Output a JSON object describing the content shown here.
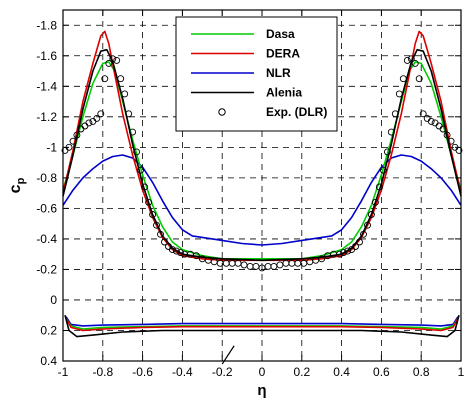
{
  "chart_data": {
    "type": "line",
    "title": "",
    "xlabel": "η",
    "ylabel": "c",
    "ylabel_sub": "p",
    "xlim": [
      -1,
      1
    ],
    "ylim": [
      0.4,
      -1.9
    ],
    "y_axis_inverted": true,
    "grid": true,
    "grid_style": "dashed",
    "legend_position": "top-center",
    "x_ticks": [
      "-1",
      "-0.8",
      "-0.6",
      "-0.4",
      "-0.2",
      "0",
      "0.2",
      "0.4",
      "0.6",
      "0.8",
      "1"
    ],
    "y_ticks": [
      "-1.8",
      "-1.6",
      "-1.4",
      "-1.2",
      "-1",
      "-0.8",
      "-0.6",
      "-0.4",
      "-0.2",
      "0",
      "0.2",
      "0.4"
    ],
    "series": [
      {
        "name": "Dasa",
        "color": "#00cc00",
        "upper": [
          [
            -1,
            -0.72
          ],
          [
            -0.95,
            -0.95
          ],
          [
            -0.9,
            -1.2
          ],
          [
            -0.85,
            -1.42
          ],
          [
            -0.8,
            -1.55
          ],
          [
            -0.77,
            -1.56
          ],
          [
            -0.74,
            -1.5
          ],
          [
            -0.7,
            -1.3
          ],
          [
            -0.65,
            -1.05
          ],
          [
            -0.6,
            -0.82
          ],
          [
            -0.55,
            -0.62
          ],
          [
            -0.5,
            -0.48
          ],
          [
            -0.45,
            -0.38
          ],
          [
            -0.4,
            -0.33
          ],
          [
            -0.3,
            -0.29
          ],
          [
            -0.2,
            -0.27
          ],
          [
            -0.1,
            -0.27
          ],
          [
            0,
            -0.27
          ],
          [
            0.1,
            -0.27
          ],
          [
            0.2,
            -0.27
          ],
          [
            0.3,
            -0.29
          ],
          [
            0.4,
            -0.33
          ],
          [
            0.45,
            -0.38
          ],
          [
            0.5,
            -0.48
          ],
          [
            0.55,
            -0.62
          ],
          [
            0.6,
            -0.82
          ],
          [
            0.65,
            -1.05
          ],
          [
            0.7,
            -1.3
          ],
          [
            0.74,
            -1.5
          ],
          [
            0.77,
            -1.56
          ],
          [
            0.8,
            -1.55
          ],
          [
            0.85,
            -1.42
          ],
          [
            0.9,
            -1.2
          ],
          [
            0.95,
            -0.95
          ],
          [
            1,
            -0.72
          ]
        ],
        "lower": [
          [
            -0.985,
            0.12
          ],
          [
            -0.96,
            0.17
          ],
          [
            -0.9,
            0.19
          ],
          [
            -0.8,
            0.18
          ],
          [
            -0.6,
            0.175
          ],
          [
            -0.4,
            0.17
          ],
          [
            -0.2,
            0.17
          ],
          [
            0,
            0.17
          ],
          [
            0.2,
            0.17
          ],
          [
            0.4,
            0.17
          ],
          [
            0.6,
            0.175
          ],
          [
            0.8,
            0.18
          ],
          [
            0.9,
            0.19
          ],
          [
            0.96,
            0.17
          ],
          [
            0.985,
            0.12
          ]
        ]
      },
      {
        "name": "DERA",
        "color": "#dd0000",
        "upper": [
          [
            -1,
            -0.7
          ],
          [
            -0.95,
            -0.98
          ],
          [
            -0.9,
            -1.3
          ],
          [
            -0.85,
            -1.55
          ],
          [
            -0.81,
            -1.73
          ],
          [
            -0.79,
            -1.76
          ],
          [
            -0.77,
            -1.68
          ],
          [
            -0.74,
            -1.48
          ],
          [
            -0.7,
            -1.22
          ],
          [
            -0.65,
            -0.95
          ],
          [
            -0.6,
            -0.72
          ],
          [
            -0.55,
            -0.54
          ],
          [
            -0.5,
            -0.41
          ],
          [
            -0.45,
            -0.33
          ],
          [
            -0.4,
            -0.29
          ],
          [
            -0.3,
            -0.27
          ],
          [
            -0.2,
            -0.26
          ],
          [
            0,
            -0.26
          ],
          [
            0.2,
            -0.26
          ],
          [
            0.3,
            -0.27
          ],
          [
            0.4,
            -0.29
          ],
          [
            0.45,
            -0.33
          ],
          [
            0.5,
            -0.41
          ],
          [
            0.55,
            -0.54
          ],
          [
            0.6,
            -0.72
          ],
          [
            0.65,
            -0.95
          ],
          [
            0.7,
            -1.22
          ],
          [
            0.74,
            -1.48
          ],
          [
            0.77,
            -1.68
          ],
          [
            0.79,
            -1.76
          ],
          [
            0.81,
            -1.73
          ],
          [
            0.85,
            -1.55
          ],
          [
            0.9,
            -1.3
          ],
          [
            0.95,
            -0.98
          ],
          [
            1,
            -0.7
          ]
        ],
        "lower": [
          [
            -0.985,
            0.12
          ],
          [
            -0.96,
            0.18
          ],
          [
            -0.9,
            0.2
          ],
          [
            -0.8,
            0.19
          ],
          [
            -0.6,
            0.18
          ],
          [
            -0.4,
            0.175
          ],
          [
            -0.2,
            0.175
          ],
          [
            0,
            0.175
          ],
          [
            0.2,
            0.175
          ],
          [
            0.4,
            0.175
          ],
          [
            0.6,
            0.18
          ],
          [
            0.8,
            0.19
          ],
          [
            0.9,
            0.2
          ],
          [
            0.96,
            0.18
          ],
          [
            0.985,
            0.12
          ]
        ]
      },
      {
        "name": "NLR",
        "color": "#0000cc",
        "upper": [
          [
            -1,
            -0.62
          ],
          [
            -0.95,
            -0.72
          ],
          [
            -0.9,
            -0.8
          ],
          [
            -0.85,
            -0.86
          ],
          [
            -0.8,
            -0.91
          ],
          [
            -0.75,
            -0.94
          ],
          [
            -0.7,
            -0.95
          ],
          [
            -0.65,
            -0.93
          ],
          [
            -0.6,
            -0.87
          ],
          [
            -0.55,
            -0.77
          ],
          [
            -0.5,
            -0.65
          ],
          [
            -0.45,
            -0.54
          ],
          [
            -0.4,
            -0.46
          ],
          [
            -0.35,
            -0.42
          ],
          [
            -0.3,
            -0.41
          ],
          [
            -0.2,
            -0.39
          ],
          [
            -0.1,
            -0.37
          ],
          [
            0,
            -0.36
          ],
          [
            0.1,
            -0.37
          ],
          [
            0.2,
            -0.39
          ],
          [
            0.3,
            -0.41
          ],
          [
            0.35,
            -0.42
          ],
          [
            0.4,
            -0.46
          ],
          [
            0.45,
            -0.54
          ],
          [
            0.5,
            -0.65
          ],
          [
            0.55,
            -0.77
          ],
          [
            0.6,
            -0.87
          ],
          [
            0.65,
            -0.93
          ],
          [
            0.7,
            -0.95
          ],
          [
            0.75,
            -0.94
          ],
          [
            0.8,
            -0.91
          ],
          [
            0.85,
            -0.86
          ],
          [
            0.9,
            -0.8
          ],
          [
            0.95,
            -0.72
          ],
          [
            1,
            -0.62
          ]
        ],
        "lower": [
          [
            -0.985,
            0.11
          ],
          [
            -0.96,
            0.16
          ],
          [
            -0.9,
            0.17
          ],
          [
            -0.8,
            0.165
          ],
          [
            -0.6,
            0.16
          ],
          [
            -0.4,
            0.155
          ],
          [
            -0.2,
            0.155
          ],
          [
            0,
            0.155
          ],
          [
            0.2,
            0.155
          ],
          [
            0.4,
            0.155
          ],
          [
            0.6,
            0.16
          ],
          [
            0.8,
            0.165
          ],
          [
            0.9,
            0.17
          ],
          [
            0.96,
            0.16
          ],
          [
            0.985,
            0.11
          ]
        ]
      },
      {
        "name": "Alenia",
        "color": "#000000",
        "upper": [
          [
            -1,
            -0.68
          ],
          [
            -0.95,
            -0.95
          ],
          [
            -0.9,
            -1.25
          ],
          [
            -0.85,
            -1.5
          ],
          [
            -0.81,
            -1.63
          ],
          [
            -0.78,
            -1.64
          ],
          [
            -0.75,
            -1.56
          ],
          [
            -0.7,
            -1.32
          ],
          [
            -0.65,
            -1.02
          ],
          [
            -0.6,
            -0.76
          ],
          [
            -0.55,
            -0.56
          ],
          [
            -0.5,
            -0.42
          ],
          [
            -0.45,
            -0.34
          ],
          [
            -0.4,
            -0.3
          ],
          [
            -0.3,
            -0.28
          ],
          [
            -0.2,
            -0.27
          ],
          [
            0,
            -0.26
          ],
          [
            0.2,
            -0.27
          ],
          [
            0.3,
            -0.28
          ],
          [
            0.4,
            -0.3
          ],
          [
            0.45,
            -0.34
          ],
          [
            0.5,
            -0.42
          ],
          [
            0.55,
            -0.56
          ],
          [
            0.6,
            -0.76
          ],
          [
            0.65,
            -1.02
          ],
          [
            0.7,
            -1.32
          ],
          [
            0.75,
            -1.56
          ],
          [
            0.78,
            -1.64
          ],
          [
            0.81,
            -1.63
          ],
          [
            0.85,
            -1.5
          ],
          [
            0.9,
            -1.25
          ],
          [
            0.95,
            -0.95
          ],
          [
            1,
            -0.68
          ]
        ],
        "lower": [
          [
            -0.99,
            0.1
          ],
          [
            -0.97,
            0.2
          ],
          [
            -0.93,
            0.24
          ],
          [
            -0.85,
            0.23
          ],
          [
            -0.7,
            0.21
          ],
          [
            -0.5,
            0.2
          ],
          [
            -0.3,
            0.2
          ],
          [
            0,
            0.2
          ],
          [
            0.3,
            0.2
          ],
          [
            0.5,
            0.2
          ],
          [
            0.7,
            0.21
          ],
          [
            0.85,
            0.23
          ],
          [
            0.93,
            0.24
          ],
          [
            0.97,
            0.2
          ],
          [
            0.99,
            0.1
          ]
        ]
      }
    ],
    "experiment": {
      "name": "Exp. (DLR)",
      "marker": "open-circle",
      "points": [
        [
          -0.99,
          -0.98
        ],
        [
          -0.97,
          -1.0
        ],
        [
          -0.95,
          -1.04
        ],
        [
          -0.93,
          -1.08
        ],
        [
          -0.91,
          -1.12
        ],
        [
          -0.89,
          -1.14
        ],
        [
          -0.87,
          -1.16
        ],
        [
          -0.85,
          -1.17
        ],
        [
          -0.83,
          -1.19
        ],
        [
          -0.81,
          -1.22
        ],
        [
          -0.79,
          -1.45
        ],
        [
          -0.77,
          -1.55
        ],
        [
          -0.75,
          -1.58
        ],
        [
          -0.73,
          -1.57
        ],
        [
          -0.71,
          -1.45
        ],
        [
          -0.69,
          -1.35
        ],
        [
          -0.67,
          -1.22
        ],
        [
          -0.65,
          -1.1
        ],
        [
          -0.63,
          -0.97
        ],
        [
          -0.61,
          -0.85
        ],
        [
          -0.59,
          -0.74
        ],
        [
          -0.57,
          -0.64
        ],
        [
          -0.55,
          -0.56
        ],
        [
          -0.53,
          -0.49
        ],
        [
          -0.51,
          -0.43
        ],
        [
          -0.49,
          -0.38
        ],
        [
          -0.47,
          -0.35
        ],
        [
          -0.45,
          -0.33
        ],
        [
          -0.43,
          -0.32
        ],
        [
          -0.41,
          -0.31
        ],
        [
          -0.39,
          -0.3
        ],
        [
          -0.36,
          -0.3
        ],
        [
          -0.33,
          -0.29
        ],
        [
          -0.3,
          -0.27
        ],
        [
          -0.27,
          -0.26
        ],
        [
          -0.24,
          -0.25
        ],
        [
          -0.21,
          -0.24
        ],
        [
          -0.18,
          -0.24
        ],
        [
          -0.15,
          -0.24
        ],
        [
          -0.12,
          -0.24
        ],
        [
          -0.09,
          -0.23
        ],
        [
          -0.06,
          -0.22
        ],
        [
          -0.03,
          -0.22
        ],
        [
          0,
          -0.21
        ],
        [
          0.03,
          -0.22
        ],
        [
          0.06,
          -0.22
        ],
        [
          0.09,
          -0.23
        ],
        [
          0.12,
          -0.24
        ],
        [
          0.15,
          -0.24
        ],
        [
          0.18,
          -0.24
        ],
        [
          0.21,
          -0.24
        ],
        [
          0.24,
          -0.25
        ],
        [
          0.27,
          -0.26
        ],
        [
          0.3,
          -0.27
        ],
        [
          0.33,
          -0.29
        ],
        [
          0.36,
          -0.3
        ],
        [
          0.39,
          -0.3
        ],
        [
          0.41,
          -0.31
        ],
        [
          0.43,
          -0.32
        ],
        [
          0.45,
          -0.33
        ],
        [
          0.47,
          -0.35
        ],
        [
          0.49,
          -0.38
        ],
        [
          0.51,
          -0.43
        ],
        [
          0.53,
          -0.49
        ],
        [
          0.55,
          -0.56
        ],
        [
          0.57,
          -0.64
        ],
        [
          0.59,
          -0.74
        ],
        [
          0.61,
          -0.85
        ],
        [
          0.63,
          -0.97
        ],
        [
          0.65,
          -1.1
        ],
        [
          0.67,
          -1.22
        ],
        [
          0.69,
          -1.35
        ],
        [
          0.71,
          -1.45
        ],
        [
          0.73,
          -1.57
        ],
        [
          0.75,
          -1.58
        ],
        [
          0.77,
          -1.55
        ],
        [
          0.79,
          -1.45
        ],
        [
          0.81,
          -1.22
        ],
        [
          0.83,
          -1.19
        ],
        [
          0.85,
          -1.17
        ],
        [
          0.87,
          -1.16
        ],
        [
          0.89,
          -1.14
        ],
        [
          0.91,
          -1.12
        ],
        [
          0.93,
          -1.08
        ],
        [
          0.95,
          -1.04
        ],
        [
          0.97,
          -1.0
        ],
        [
          0.99,
          -0.98
        ]
      ]
    },
    "annotation_segment": [
      [
        -0.2,
        0.42
      ],
      [
        -0.14,
        0.3
      ]
    ]
  }
}
